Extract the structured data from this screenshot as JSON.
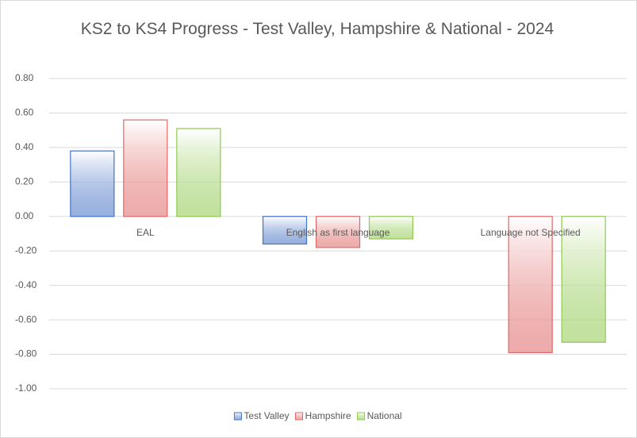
{
  "chart_data": {
    "type": "bar",
    "title": "KS2 to KS4 Progress - Test Valley, Hampshire  & National - 2024",
    "categories": [
      "EAL",
      "English as first language",
      "Language not Specified"
    ],
    "series": [
      {
        "name": "Test Valley",
        "color": "#4472c4",
        "values": [
          0.38,
          -0.16,
          null
        ]
      },
      {
        "name": "Hampshire",
        "color": "#e06666",
        "values": [
          0.56,
          -0.18,
          -0.79
        ]
      },
      {
        "name": "National",
        "color": "#8fc94f",
        "values": [
          0.51,
          -0.13,
          -0.73
        ]
      }
    ],
    "ylim": [
      -1.0,
      0.8
    ],
    "yticks": [
      {
        "value": -1.0,
        "label": "-1.00"
      },
      {
        "value": -0.8,
        "label": "-0.80"
      },
      {
        "value": -0.6,
        "label": "-0.60"
      },
      {
        "value": -0.4,
        "label": "-0.40"
      },
      {
        "value": -0.2,
        "label": "-0.20"
      },
      {
        "value": 0,
        "label": "0.00"
      },
      {
        "value": 0.2,
        "label": "0.20"
      },
      {
        "value": 0.4,
        "label": "0.40"
      },
      {
        "value": 0.6,
        "label": "0.60"
      },
      {
        "value": 0.8,
        "label": "0.80"
      }
    ],
    "grid": true,
    "legend": "bottom"
  }
}
